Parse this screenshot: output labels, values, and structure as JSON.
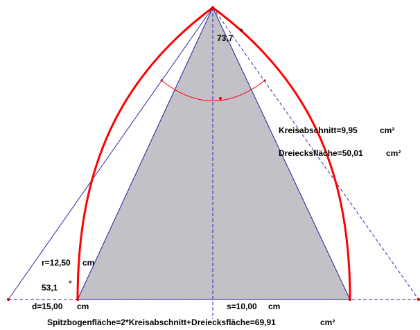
{
  "colors": {
    "triangle_fill": "#c3c0c7",
    "triangle_stroke": "#1f1f9a",
    "arc": "#ff0000",
    "construction_line": "#2a2aa8",
    "point": "#cc0000",
    "text": "#000000"
  },
  "labels": {
    "angle_top": "73,7",
    "angle_top_unit": "°",
    "angle_base": "53,1",
    "angle_base_unit": "°",
    "radius": "r=12,50",
    "radius_unit": "cm",
    "diameter": "d=15,00",
    "diameter_unit": "cm",
    "side": "s=10,00",
    "side_unit": "cm",
    "segment_area": "Kreisabschnitt=9,95",
    "segment_area_unit": "cm²",
    "triangle_area": "Dreiecksfläche=50,01",
    "triangle_area_unit": "cm²",
    "formula": "Spitzbogenfläche=2*Kreisabschnitt+Dreiecksfläche=69,91",
    "formula_unit": "cm²"
  }
}
